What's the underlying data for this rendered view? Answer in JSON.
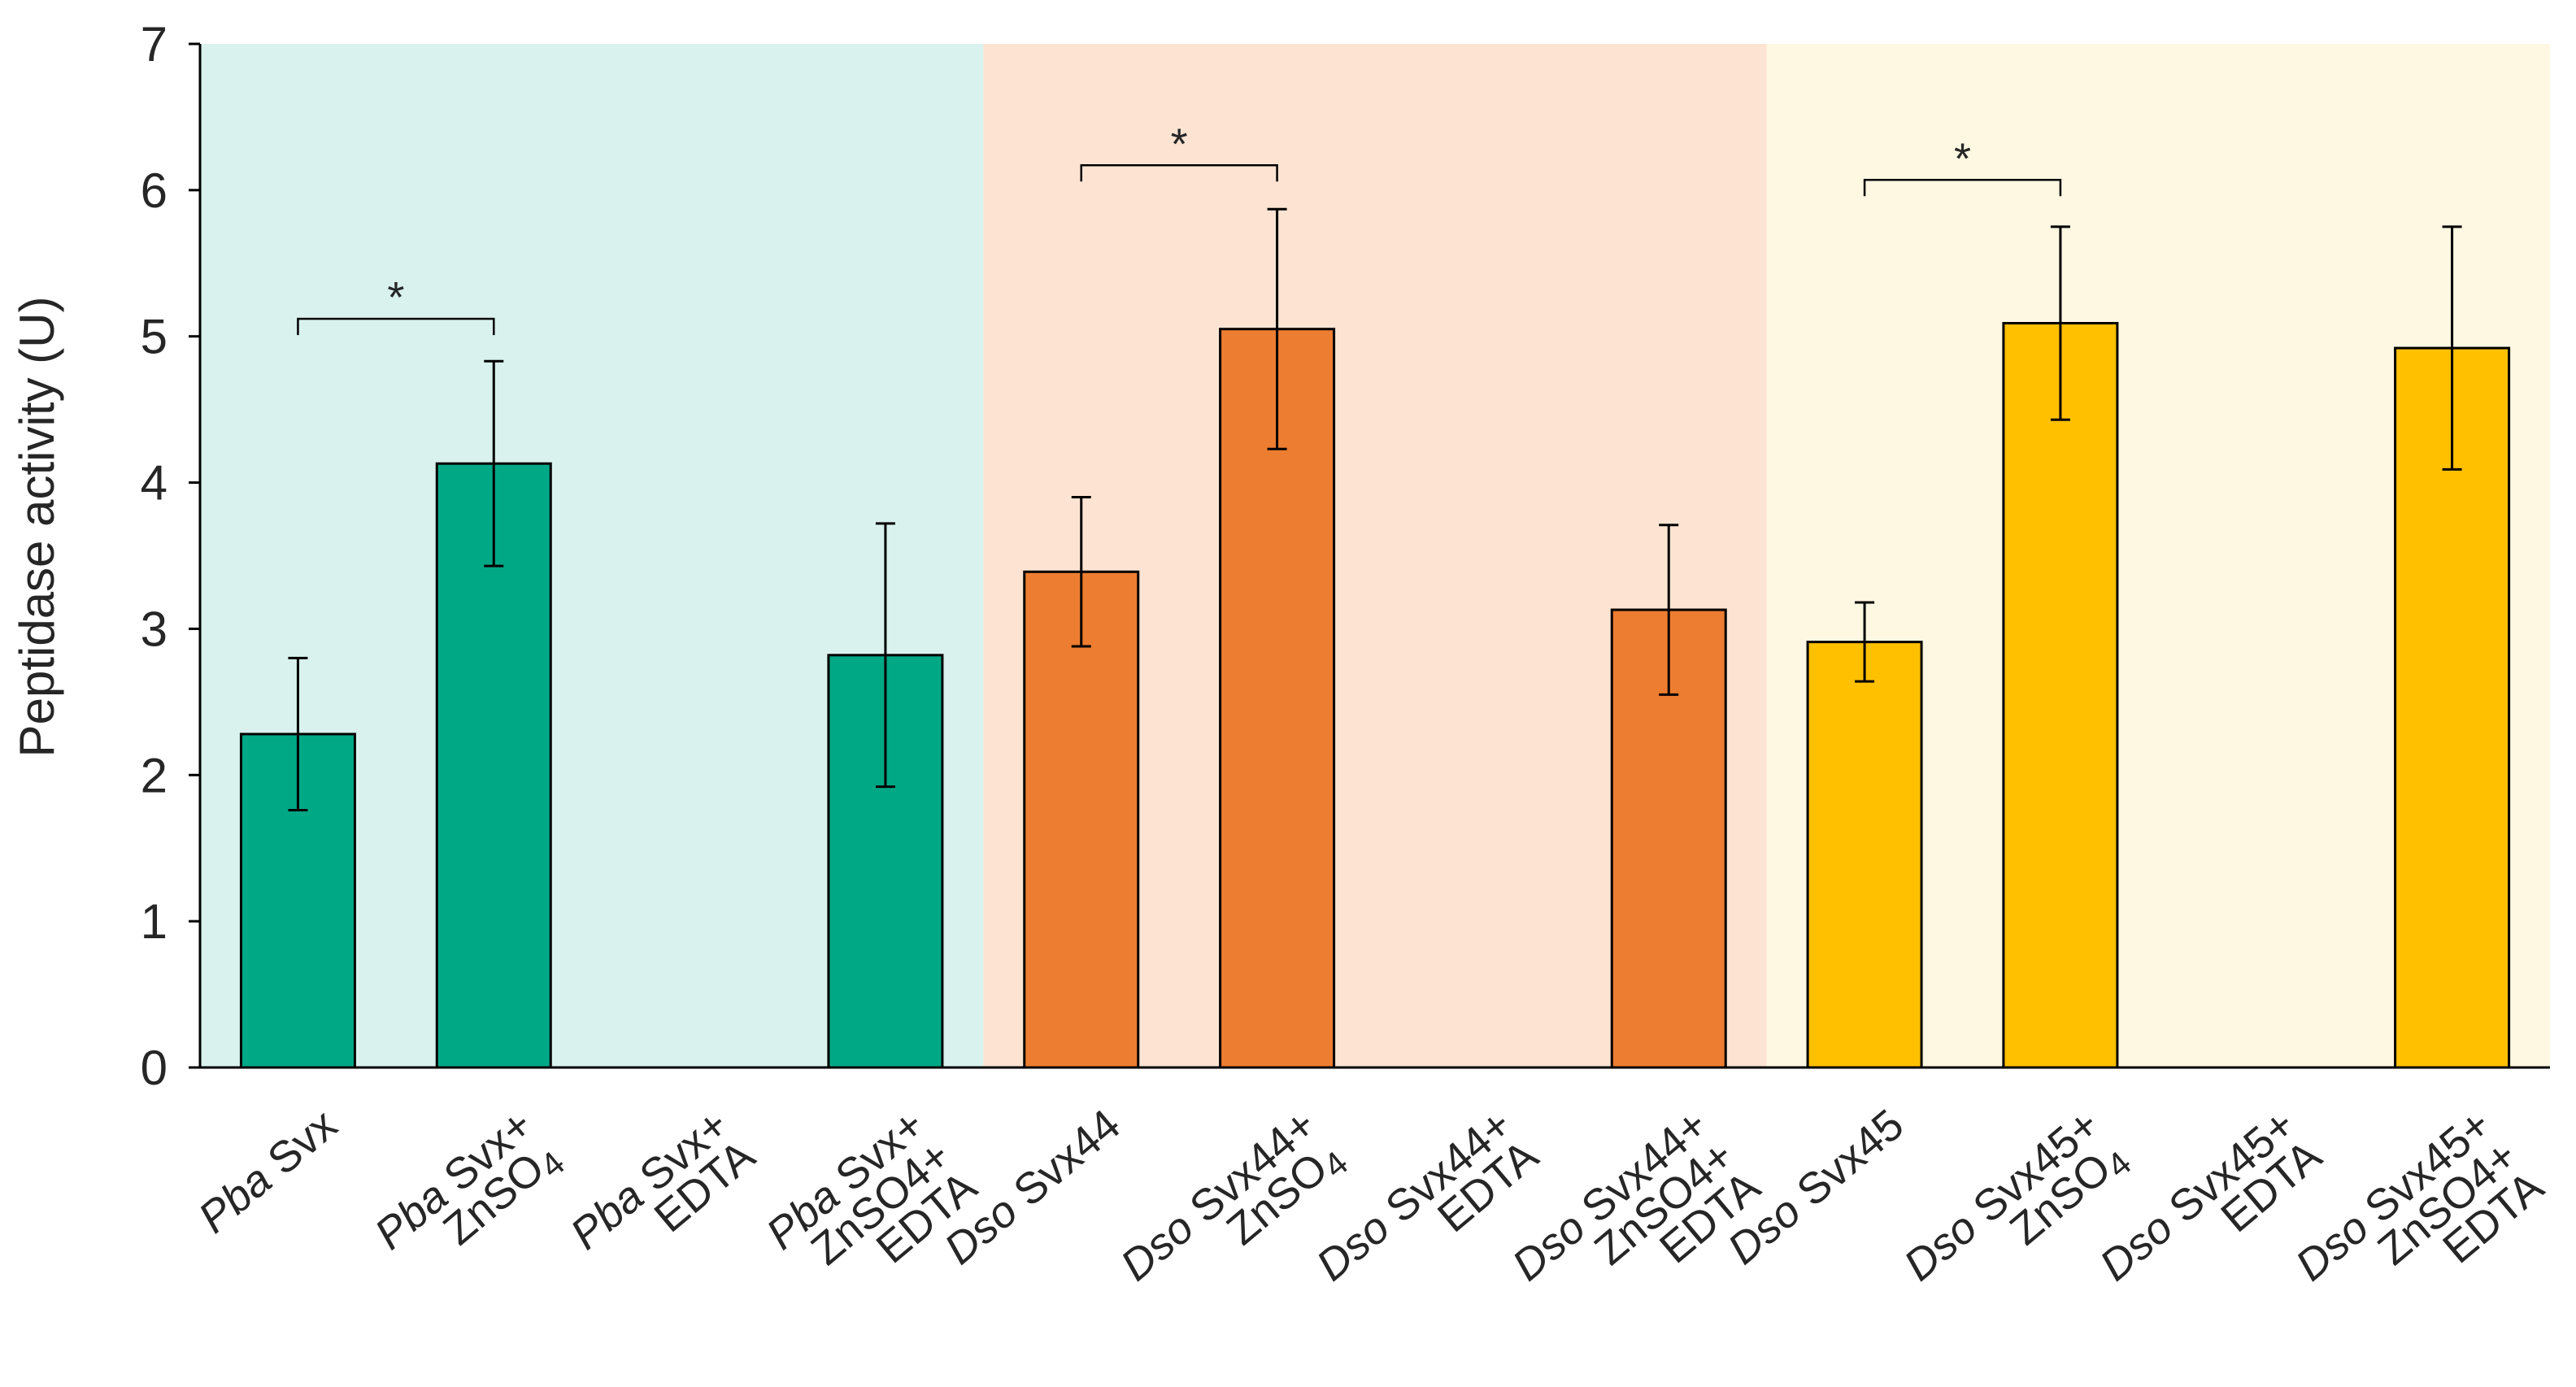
{
  "chart_data": {
    "type": "bar",
    "title": "",
    "xlabel": "",
    "ylabel": "Peptidase activity  (U)",
    "ylim": [
      0,
      7
    ],
    "yticks": [
      0,
      1,
      2,
      3,
      4,
      5,
      6,
      7
    ],
    "grid": false,
    "groups": [
      {
        "name": "Pba Svx",
        "color": "#00A886",
        "band_color": "#D9F2EE",
        "start": 0,
        "end": 3
      },
      {
        "name": "Dso Svx44",
        "color": "#ED7D31",
        "band_color": "#FDE4D2",
        "start": 4,
        "end": 7
      },
      {
        "name": "Dso Svx45",
        "color": "#FFC000",
        "band_color": "#FEF7E2",
        "start": 8,
        "end": 11
      }
    ],
    "categories": [
      {
        "lines": [
          {
            "italic": "Pba",
            "rest": " Svx"
          }
        ]
      },
      {
        "lines": [
          {
            "italic": "Pba",
            "rest": " Svx+"
          },
          {
            "text": "ZnSO",
            "sub": "4"
          }
        ]
      },
      {
        "lines": [
          {
            "italic": "Pba",
            "rest": " Svx+"
          },
          {
            "text": "EDTA"
          }
        ]
      },
      {
        "lines": [
          {
            "italic": "Pba",
            "rest": " Svx+"
          },
          {
            "text": "ZnSO4+"
          },
          {
            "text": "EDTA"
          }
        ]
      },
      {
        "lines": [
          {
            "italic": "Dso",
            "rest": " Svx44"
          }
        ]
      },
      {
        "lines": [
          {
            "italic": "Dso",
            "rest": " Svx44+"
          },
          {
            "text": "ZnSO",
            "sub": "4"
          }
        ]
      },
      {
        "lines": [
          {
            "italic": "Dso",
            "rest": " Svx44+"
          },
          {
            "text": "EDTA"
          }
        ]
      },
      {
        "lines": [
          {
            "italic": "Dso",
            "rest": " Svx44+"
          },
          {
            "text": "ZnSO4+"
          },
          {
            "text": "EDTA"
          }
        ]
      },
      {
        "lines": [
          {
            "italic": "Dso",
            "rest": " Svx45"
          }
        ]
      },
      {
        "lines": [
          {
            "italic": "Dso",
            "rest": " Svx45+"
          },
          {
            "text": "ZnSO",
            "sub": "4"
          }
        ]
      },
      {
        "lines": [
          {
            "italic": "Dso",
            "rest": " Svx45+"
          },
          {
            "text": "EDTA"
          }
        ]
      },
      {
        "lines": [
          {
            "italic": "Dso",
            "rest": " Svx45+"
          },
          {
            "text": "ZnSO4+"
          },
          {
            "text": "EDTA"
          }
        ]
      }
    ],
    "values": [
      2.28,
      4.13,
      0,
      2.82,
      3.39,
      5.05,
      0,
      3.13,
      2.91,
      5.09,
      0,
      4.92
    ],
    "errors": [
      0.52,
      0.7,
      null,
      0.9,
      0.51,
      0.82,
      null,
      0.58,
      0.27,
      0.66,
      null,
      0.83
    ],
    "significance": [
      {
        "from": 0,
        "to": 1,
        "label": "*",
        "level": 5.12
      },
      {
        "from": 4,
        "to": 5,
        "label": "*",
        "level": 6.17
      },
      {
        "from": 8,
        "to": 9,
        "label": "*",
        "level": 6.07
      }
    ]
  }
}
